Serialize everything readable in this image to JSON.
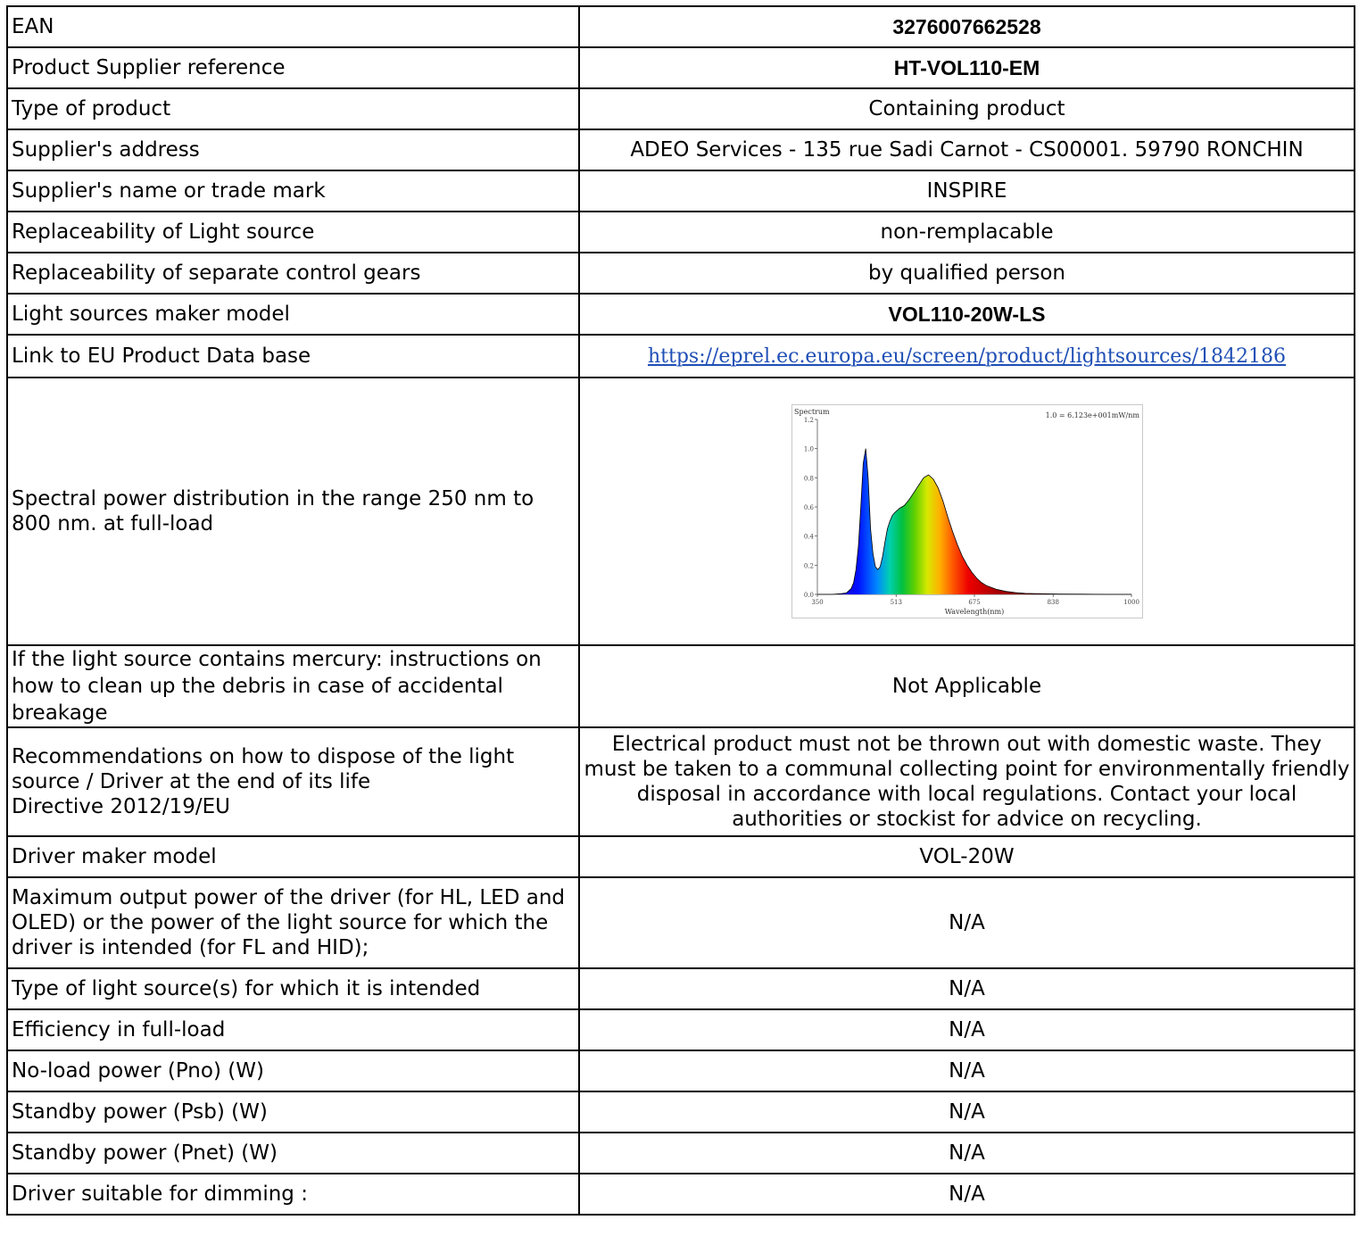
{
  "rows": [
    {
      "label": "EAN",
      "value": "3276007662528"
    },
    {
      "label": "Product Supplier reference",
      "value": "HT-VOL110-EM"
    },
    {
      "label": "Type of product",
      "value": "Containing product"
    },
    {
      "label": "Supplier's address",
      "value": "ADEO Services - 135 rue Sadi Carnot - CS00001. 59790 RONCHIN"
    },
    {
      "label": "Supplier's name or trade mark",
      "value": "INSPIRE"
    },
    {
      "label": "Replaceability of Light source",
      "value": "non-remplacable"
    },
    {
      "label": "Replaceability of separate control gears",
      "value": "by qualified person"
    },
    {
      "label": "Light sources maker model",
      "value": "VOL110-20W-LS"
    },
    {
      "label": "Link to EU Product Data base",
      "value": "https://eprel.ec.europa.eu/screen/product/lightsources/1842186"
    },
    {
      "label": "Spectral power distribution in the range 250 nm to 800 nm. at full-load",
      "value": ""
    },
    {
      "label": "If the light source contains mercury: instructions on how to clean up the debris in case of accidental breakage",
      "value": "Not Applicable"
    },
    {
      "label_lines": [
        "Recommendations on how to dispose of the light source / Driver at the end of its life",
        "Directive 2012/19/EU"
      ],
      "value": "Electrical product must not be thrown out with domestic waste. They must be taken to a communal collecting point for environmentally friendly disposal in accordance with local regulations. Contact your local authorities or stockist for advice on recycling."
    },
    {
      "label": "Driver maker model",
      "value": "VOL-20W"
    },
    {
      "label": "Maximum output power of the driver (for HL, LED and OLED) or the power of the light source for which the driver is intended (for FL and HID);",
      "value": "N/A"
    },
    {
      "label": "Type of light source(s) for which it is intended",
      "value": "N/A"
    },
    {
      "label": "Efficiency in full-load",
      "value": "N/A"
    },
    {
      "label": "No-load power (Pno) (W)",
      "value": "N/A"
    },
    {
      "label": "Standby power (Psb) (W)",
      "value": "N/A"
    },
    {
      "label": "Standby power (Pnet) (W)",
      "value": "N/A"
    },
    {
      "label": "Driver suitable for dimming :",
      "value": "N/A"
    }
  ],
  "chart_data": {
    "type": "area",
    "title": "Spectrum",
    "annotation": "1.0 = 6.123e+001mW/nm",
    "xlabel": "Wavelength(nm)",
    "ylabel": "",
    "xlim": [
      350,
      1000
    ],
    "ylim": [
      0,
      1.2
    ],
    "x_ticks": [
      "350",
      "513",
      "675",
      "838",
      "1000"
    ],
    "y_ticks": [
      "0.0",
      "0.2",
      "0.4",
      "0.6",
      "0.8",
      "1.0",
      "1.2"
    ],
    "series": [
      {
        "x": [
          350,
          380,
          400,
          410,
          420,
          425,
          430,
          435,
          440,
          445,
          450,
          455,
          460,
          465,
          470,
          475,
          480,
          485,
          490,
          495,
          500,
          505,
          510,
          520,
          530,
          540,
          550,
          560,
          570,
          580,
          590,
          600,
          610,
          620,
          630,
          640,
          650,
          660,
          670,
          680,
          690,
          700,
          720,
          740,
          760,
          780,
          800,
          850,
          900,
          950,
          1000
        ],
        "y": [
          0.0,
          0.0,
          0.005,
          0.01,
          0.04,
          0.08,
          0.17,
          0.33,
          0.6,
          0.9,
          1.0,
          0.8,
          0.45,
          0.28,
          0.19,
          0.17,
          0.19,
          0.26,
          0.36,
          0.45,
          0.5,
          0.54,
          0.56,
          0.59,
          0.61,
          0.65,
          0.7,
          0.75,
          0.8,
          0.82,
          0.79,
          0.73,
          0.64,
          0.53,
          0.43,
          0.34,
          0.26,
          0.2,
          0.15,
          0.11,
          0.08,
          0.06,
          0.035,
          0.02,
          0.012,
          0.007,
          0.005,
          0.002,
          0.001,
          0.0,
          0.0
        ]
      }
    ]
  }
}
